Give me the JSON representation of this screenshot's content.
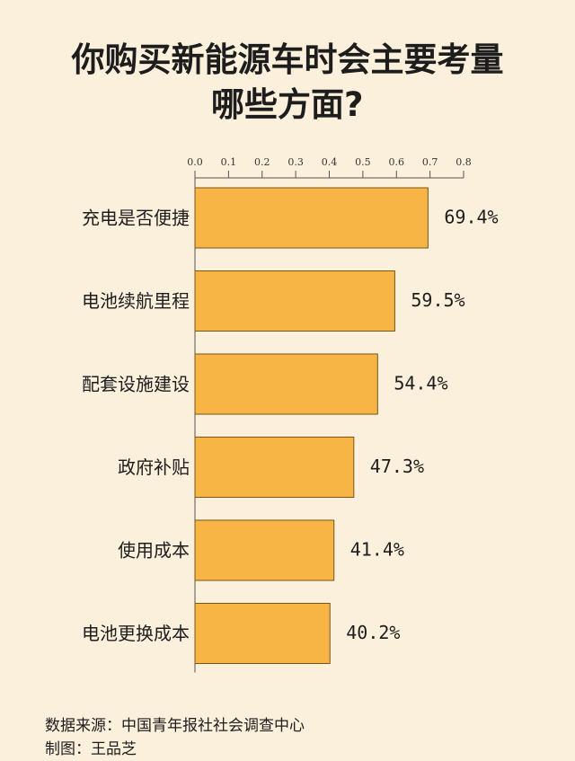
{
  "title_lines": [
    "你购买新能源车时会主要考量",
    "哪些方面?"
  ],
  "chart_data": {
    "type": "bar",
    "orientation": "horizontal",
    "title": "你购买新能源车时会主要考量哪些方面?",
    "categories": [
      "充电是否便捷",
      "电池续航里程",
      "配套设施建设",
      "政府补贴",
      "使用成本",
      "电池更换成本"
    ],
    "values": [
      0.694,
      0.595,
      0.544,
      0.473,
      0.414,
      0.402
    ],
    "value_labels": [
      "69.4%",
      "59.5%",
      "54.4%",
      "47.3%",
      "41.4%",
      "40.2%"
    ],
    "xlim": [
      0,
      0.8
    ],
    "x_ticks": [
      "0.0",
      "0.1",
      "0.2",
      "0.3",
      "0.4",
      "0.5",
      "0.6",
      "0.7",
      "0.8"
    ],
    "axis_position": "top",
    "grid": false,
    "bar_color": "#f7b546",
    "bar_edge_color": "#7a5418"
  },
  "footer": {
    "source": "数据来源：中国青年报社社会调查中心",
    "credit": "制图：王品芝"
  }
}
